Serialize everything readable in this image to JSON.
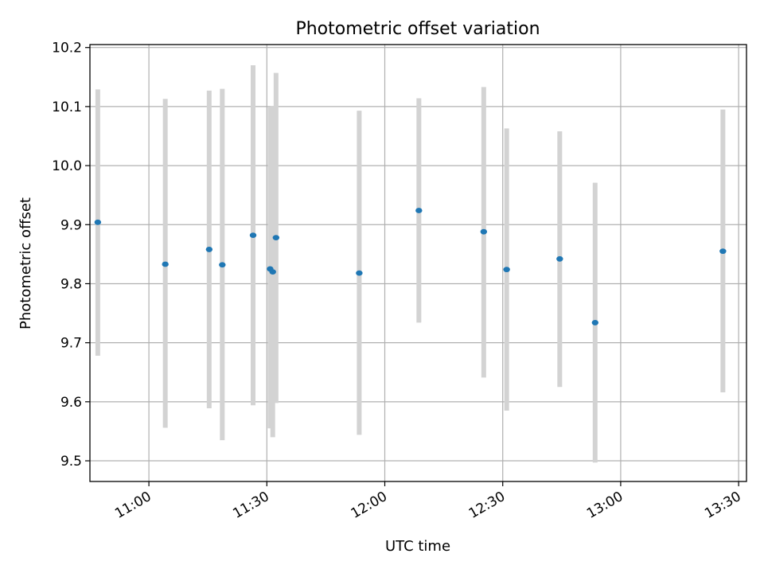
{
  "chart_data": {
    "type": "scatter",
    "title": "Photometric offset variation",
    "xlabel": "UTC time",
    "ylabel": "Photometric offset",
    "xlim": [
      "10:45",
      "13:32"
    ],
    "ylim": [
      9.465,
      10.205
    ],
    "x_ticks": [
      "11:00",
      "11:30",
      "12:00",
      "12:30",
      "13:00",
      "13:30"
    ],
    "y_ticks": [
      9.5,
      9.6,
      9.7,
      9.8,
      9.9,
      10.0,
      10.1,
      10.2
    ],
    "grid": true,
    "marker_color": "#1f77b4",
    "errorbar_color": "#d3d3d3",
    "points": [
      {
        "x": "10:47:00",
        "y": 9.904,
        "ylow": 9.678,
        "yhigh": 10.129
      },
      {
        "x": "11:04:10",
        "y": 9.833,
        "ylow": 9.556,
        "yhigh": 10.113
      },
      {
        "x": "11:15:20",
        "y": 9.858,
        "ylow": 9.589,
        "yhigh": 10.127
      },
      {
        "x": "11:18:40",
        "y": 9.832,
        "ylow": 9.535,
        "yhigh": 10.13
      },
      {
        "x": "11:26:30",
        "y": 9.882,
        "ylow": 9.594,
        "yhigh": 10.17
      },
      {
        "x": "11:30:50",
        "y": 9.825,
        "ylow": 9.555,
        "yhigh": 10.1
      },
      {
        "x": "11:31:30",
        "y": 9.82,
        "ylow": 9.54,
        "yhigh": 10.101
      },
      {
        "x": "11:32:20",
        "y": 9.878,
        "ylow": 9.598,
        "yhigh": 10.157
      },
      {
        "x": "11:53:30",
        "y": 9.818,
        "ylow": 9.544,
        "yhigh": 10.093
      },
      {
        "x": "12:08:40",
        "y": 9.924,
        "ylow": 9.734,
        "yhigh": 10.114
      },
      {
        "x": "12:25:10",
        "y": 9.888,
        "ylow": 9.641,
        "yhigh": 10.133
      },
      {
        "x": "12:31:00",
        "y": 9.824,
        "ylow": 9.585,
        "yhigh": 10.063
      },
      {
        "x": "12:44:30",
        "y": 9.842,
        "ylow": 9.625,
        "yhigh": 10.058
      },
      {
        "x": "12:53:30",
        "y": 9.734,
        "ylow": 9.497,
        "yhigh": 9.971
      },
      {
        "x": "13:26:00",
        "y": 9.855,
        "ylow": 9.616,
        "yhigh": 10.095
      }
    ]
  }
}
